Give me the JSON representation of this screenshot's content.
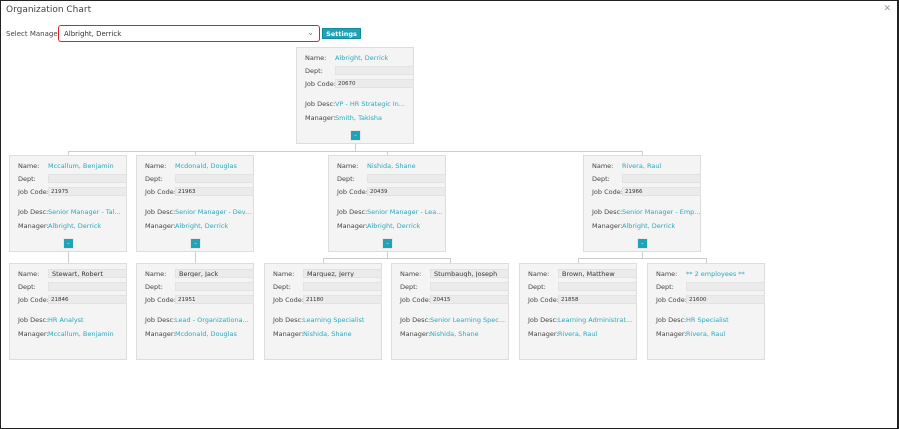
{
  "window": {
    "title": "Organization Chart",
    "close_icon": "close-icon"
  },
  "toolbar": {
    "select_label": "Select Manager:",
    "selected_manager": "Albright, Derrick",
    "settings_label": "Settings"
  },
  "labels": {
    "name": "Name:",
    "dept": "Dept:",
    "job_code": "Job Code:",
    "job_desc": "Job Desc:",
    "manager": "Manager:",
    "toggle": "-"
  },
  "accent": "#1fa3b8",
  "cards": [
    {
      "name": "Albright, Derrick",
      "dept": "",
      "job_code": "20670",
      "job_desc": "VP - HR Strategic In...",
      "manager": "Smith, Takisha",
      "collapsible": true,
      "name_link": true
    },
    {
      "name": "Mccallum, Benjamin",
      "dept": "",
      "job_code": "21975",
      "job_desc": "Senior Manager - Tal...",
      "manager": "Albright, Derrick",
      "collapsible": true,
      "name_link": true
    },
    {
      "name": "Mcdonald, Douglas",
      "dept": "",
      "job_code": "21963",
      "job_desc": "Senior Manager - Dev...",
      "manager": "Albright, Derrick",
      "collapsible": true,
      "name_link": true
    },
    {
      "name": "Nishida, Shane",
      "dept": "",
      "job_code": "20439",
      "job_desc": "Senior Manager - Lea...",
      "manager": "Albright, Derrick",
      "collapsible": true,
      "name_link": true
    },
    {
      "name": "Rivera, Raul",
      "dept": "",
      "job_code": "21966",
      "job_desc": "Senior Manager - Emp...",
      "manager": "Albright, Derrick",
      "collapsible": true,
      "name_link": true
    },
    {
      "name": "Stewart, Robert",
      "dept": "",
      "job_code": "21846",
      "job_desc": "HR Analyst",
      "manager": "Mccallum, Benjamin",
      "collapsible": false,
      "name_link": false
    },
    {
      "name": "Berger, Jack",
      "dept": "",
      "job_code": "21951",
      "job_desc": "Lead - Organizationa...",
      "manager": "Mcdonald, Douglas",
      "collapsible": false,
      "name_link": false
    },
    {
      "name": "Marquez, Jerry",
      "dept": "",
      "job_code": "21180",
      "job_desc": "Learning Specialist",
      "manager": "Nishida, Shane",
      "collapsible": false,
      "name_link": false
    },
    {
      "name": "Stumbaugh, Joseph",
      "dept": "",
      "job_code": "20415",
      "job_desc": "Senior Learning Spec...",
      "manager": "Nishida, Shane",
      "collapsible": false,
      "name_link": false
    },
    {
      "name": "Brown, Matthew",
      "dept": "",
      "job_code": "21858",
      "job_desc": "Learning Administrat...",
      "manager": "Rivera, Raul",
      "collapsible": false,
      "name_link": false
    },
    {
      "name": "** 2 employees **",
      "dept": "",
      "job_code": "21600",
      "job_desc": "HR Specialist",
      "manager": "Rivera, Raul",
      "collapsible": false,
      "name_link": true
    }
  ]
}
